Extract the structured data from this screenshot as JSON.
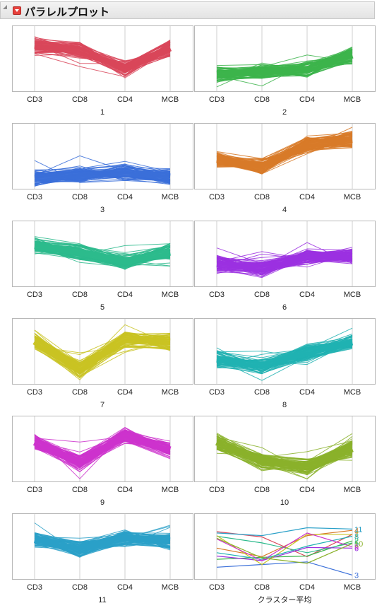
{
  "header": {
    "title": "パラレルプロット"
  },
  "chart_data": [
    {
      "type": "line",
      "title": "",
      "caption": "1",
      "categories": [
        "CD3",
        "CD8",
        "CD4",
        "MCB"
      ],
      "color": "#d9475a",
      "ylim": [
        0,
        100
      ],
      "series": [
        {
          "values": [
            70,
            62,
            34,
            66
          ]
        }
      ]
    },
    {
      "type": "line",
      "title": "",
      "caption": "2",
      "categories": [
        "CD3",
        "CD8",
        "CD4",
        "MCB"
      ],
      "color": "#3cb44b",
      "ylim": [
        0,
        100
      ],
      "series": [
        {
          "values": [
            26,
            30,
            33,
            55
          ]
        }
      ]
    },
    {
      "type": "line",
      "title": "",
      "caption": "3",
      "categories": [
        "CD3",
        "CD8",
        "CD4",
        "MCB"
      ],
      "color": "#3a6fd9",
      "ylim": [
        0,
        100
      ],
      "series": [
        {
          "values": [
            16,
            20,
            25,
            18
          ]
        }
      ]
    },
    {
      "type": "line",
      "title": "",
      "caption": "4",
      "categories": [
        "CD3",
        "CD8",
        "CD4",
        "MCB"
      ],
      "color": "#d87a28",
      "ylim": [
        0,
        100
      ],
      "series": [
        {
          "values": [
            45,
            34,
            66,
            75
          ]
        }
      ]
    },
    {
      "type": "line",
      "title": "",
      "caption": "5",
      "categories": [
        "CD3",
        "CD8",
        "CD4",
        "MCB"
      ],
      "color": "#2cba8c",
      "ylim": [
        0,
        100
      ],
      "series": [
        {
          "values": [
            62,
            52,
            38,
            52
          ]
        }
      ]
    },
    {
      "type": "line",
      "title": "",
      "caption": "6",
      "categories": [
        "CD3",
        "CD8",
        "CD4",
        "MCB"
      ],
      "color": "#9b30e0",
      "ylim": [
        0,
        100
      ],
      "series": [
        {
          "values": [
            34,
            28,
            46,
            46
          ]
        }
      ]
    },
    {
      "type": "line",
      "title": "",
      "caption": "7",
      "categories": [
        "CD3",
        "CD8",
        "CD4",
        "MCB"
      ],
      "color": "#c9c323",
      "ylim": [
        0,
        100
      ],
      "series": [
        {
          "values": [
            65,
            22,
            68,
            64
          ]
        }
      ]
    },
    {
      "type": "line",
      "title": "",
      "caption": "8",
      "categories": [
        "CD3",
        "CD8",
        "CD4",
        "MCB"
      ],
      "color": "#20b2b2",
      "ylim": [
        0,
        100
      ],
      "series": [
        {
          "values": [
            38,
            28,
            48,
            64
          ]
        }
      ]
    },
    {
      "type": "line",
      "title": "",
      "caption": "9",
      "categories": [
        "CD3",
        "CD8",
        "CD4",
        "MCB"
      ],
      "color": "#cc33cc",
      "ylim": [
        0,
        100
      ],
      "series": [
        {
          "values": [
            60,
            28,
            70,
            48
          ]
        }
      ]
    },
    {
      "type": "line",
      "title": "",
      "caption": "10",
      "categories": [
        "CD3",
        "CD8",
        "CD4",
        "MCB"
      ],
      "color": "#8ab12a",
      "ylim": [
        0,
        100
      ],
      "series": [
        {
          "values": [
            60,
            30,
            22,
            50
          ]
        }
      ]
    },
    {
      "type": "line",
      "title": "",
      "caption": "11",
      "categories": [
        "CD3",
        "CD8",
        "CD4",
        "MCB"
      ],
      "color": "#2aa0c8",
      "ylim": [
        0,
        100
      ],
      "series": [
        {
          "values": [
            60,
            45,
            62,
            58
          ]
        }
      ]
    },
    {
      "type": "line",
      "title": "",
      "caption": "クラスター平均",
      "categories": [
        "CD3",
        "CD8",
        "CD4",
        "MCB"
      ],
      "ylim": [
        0,
        100
      ],
      "series": [
        {
          "name": "1",
          "color": "#d9475a",
          "values": [
            72,
            64,
            34,
            68
          ]
        },
        {
          "name": "2",
          "color": "#3cb44b",
          "values": [
            30,
            33,
            35,
            58
          ]
        },
        {
          "name": "3",
          "color": "#3a6fd9",
          "values": [
            18,
            22,
            26,
            6
          ]
        },
        {
          "name": "4",
          "color": "#d87a28",
          "values": [
            47,
            34,
            66,
            74
          ]
        },
        {
          "name": "5",
          "color": "#2cba8c",
          "values": [
            65,
            55,
            40,
            55
          ]
        },
        {
          "name": "6",
          "color": "#9b30e0",
          "values": [
            35,
            28,
            48,
            47
          ]
        },
        {
          "name": "7",
          "color": "#c9c323",
          "values": [
            66,
            22,
            68,
            68
          ]
        },
        {
          "name": "8",
          "color": "#20b2b2",
          "values": [
            40,
            30,
            50,
            65
          ]
        },
        {
          "name": "9",
          "color": "#cc33cc",
          "values": [
            61,
            28,
            70,
            49
          ]
        },
        {
          "name": "10",
          "color": "#8ab12a",
          "values": [
            62,
            32,
            24,
            54
          ]
        },
        {
          "name": "11",
          "color": "#2aa0c8",
          "values": [
            70,
            66,
            78,
            76
          ]
        }
      ]
    }
  ]
}
